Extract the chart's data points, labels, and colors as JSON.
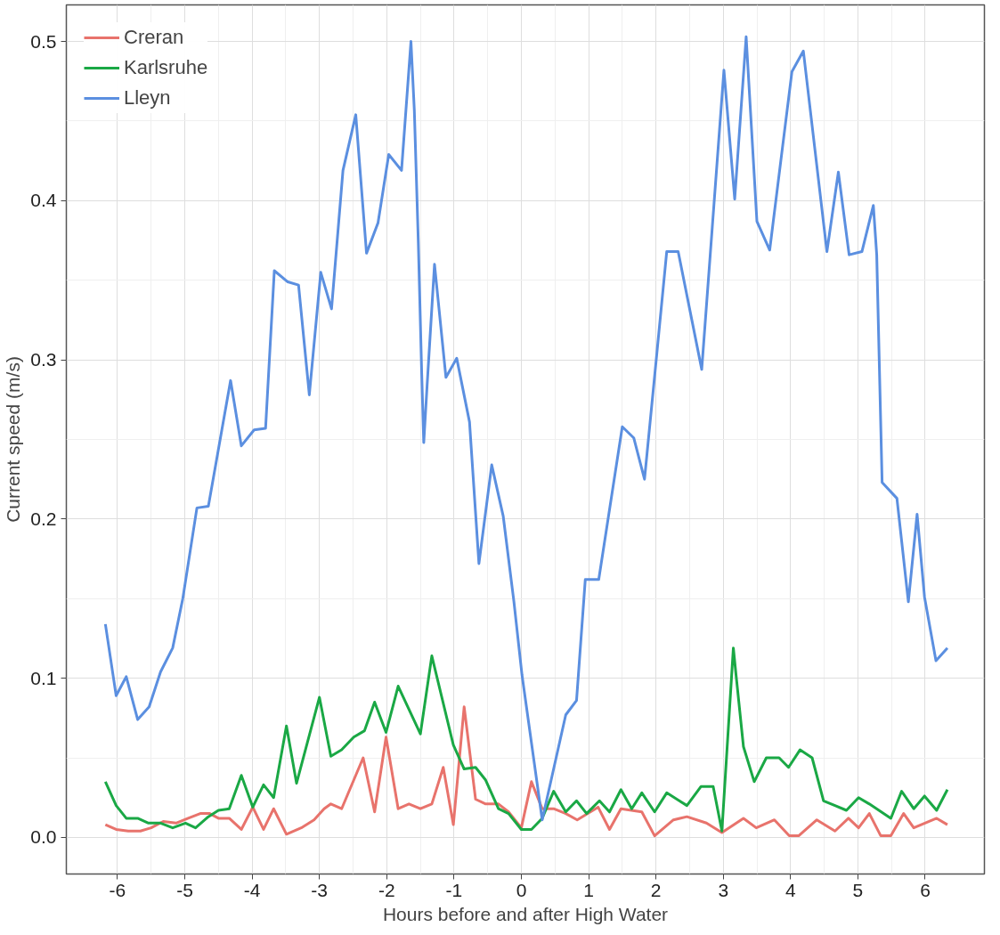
{
  "chart_data": {
    "type": "line",
    "xlabel": "Hours before and after High Water",
    "ylabel": "Current speed (m/s)",
    "xlim": [
      -6.76,
      6.88
    ],
    "ylim": [
      -0.023,
      0.523
    ],
    "xticks": [
      -6,
      -5,
      -4,
      -3,
      -2,
      -1,
      0,
      1,
      2,
      3,
      4,
      5,
      6
    ],
    "yticks": [
      {
        "value": 0,
        "label": "0.0"
      },
      {
        "value": 0.1,
        "label": "0.1"
      },
      {
        "value": 0.2,
        "label": "0.2"
      },
      {
        "value": 0.3,
        "label": "0.3"
      },
      {
        "value": 0.4,
        "label": "0.4"
      },
      {
        "value": 0.5,
        "label": "0.5"
      }
    ],
    "grid": true,
    "legend": "top left",
    "series": [
      {
        "name": "Creran",
        "color": "#e8736c",
        "x": [
          -6.18,
          -6.02,
          -5.84,
          -5.66,
          -5.5,
          -5.32,
          -5.13,
          -4.95,
          -4.77,
          -4.63,
          -4.5,
          -4.34,
          -4.16,
          -3.99,
          -3.83,
          -3.68,
          -3.49,
          -3.27,
          -3.08,
          -2.93,
          -2.83,
          -2.67,
          -2.35,
          -2.18,
          -2.01,
          -1.83,
          -1.67,
          -1.5,
          -1.33,
          -1.16,
          -1.01,
          -0.85,
          -0.68,
          -0.53,
          -0.34,
          -0.19,
          0.0,
          0.15,
          0.31,
          0.48,
          0.66,
          0.83,
          1.14,
          1.31,
          1.48,
          1.79,
          1.98,
          2.26,
          2.46,
          2.75,
          2.98,
          3.3,
          3.49,
          3.76,
          3.98,
          4.12,
          4.39,
          4.66,
          4.86,
          5.01,
          5.17,
          5.34,
          5.49,
          5.68,
          5.83,
          6.17,
          6.33
        ],
        "values": [
          0.008,
          0.005,
          0.004,
          0.004,
          0.006,
          0.01,
          0.009,
          0.012,
          0.015,
          0.015,
          0.012,
          0.012,
          0.005,
          0.019,
          0.005,
          0.018,
          0.002,
          0.006,
          0.011,
          0.018,
          0.021,
          0.018,
          0.05,
          0.016,
          0.063,
          0.018,
          0.021,
          0.018,
          0.021,
          0.044,
          0.008,
          0.082,
          0.024,
          0.021,
          0.021,
          0.016,
          0.006,
          0.035,
          0.018,
          0.018,
          0.015,
          0.011,
          0.019,
          0.005,
          0.018,
          0.016,
          0.001,
          0.011,
          0.013,
          0.009,
          0.003,
          0.012,
          0.006,
          0.011,
          0.001,
          0.001,
          0.011,
          0.004,
          0.012,
          0.006,
          0.015,
          0.001,
          0.001,
          0.015,
          0.006,
          0.012,
          0.008
        ]
      },
      {
        "name": "Karlsruhe",
        "color": "#1aa845",
        "x": [
          -6.18,
          -6.02,
          -5.87,
          -5.7,
          -5.54,
          -5.36,
          -5.18,
          -4.99,
          -4.84,
          -4.65,
          -4.5,
          -4.34,
          -4.16,
          -3.99,
          -3.83,
          -3.68,
          -3.49,
          -3.34,
          -3.0,
          -2.83,
          -2.67,
          -2.49,
          -2.33,
          -2.18,
          -2.01,
          -1.83,
          -1.5,
          -1.33,
          -1.01,
          -0.85,
          -0.68,
          -0.53,
          -0.34,
          -0.19,
          0.0,
          0.15,
          0.31,
          0.48,
          0.66,
          0.82,
          0.97,
          1.16,
          1.31,
          1.48,
          1.64,
          1.79,
          1.98,
          2.16,
          2.46,
          2.67,
          2.85,
          2.98,
          3.15,
          3.19,
          3.3,
          3.46,
          3.64,
          3.83,
          3.97,
          4.14,
          4.32,
          4.49,
          4.66,
          4.83,
          5.01,
          5.17,
          5.49,
          5.65,
          5.83,
          5.99,
          6.17,
          6.33
        ],
        "values": [
          0.035,
          0.02,
          0.012,
          0.012,
          0.009,
          0.009,
          0.006,
          0.009,
          0.006,
          0.013,
          0.017,
          0.018,
          0.039,
          0.019,
          0.033,
          0.025,
          0.07,
          0.034,
          0.088,
          0.051,
          0.055,
          0.063,
          0.067,
          0.085,
          0.066,
          0.095,
          0.065,
          0.114,
          0.058,
          0.043,
          0.044,
          0.036,
          0.018,
          0.015,
          0.005,
          0.005,
          0.012,
          0.029,
          0.016,
          0.023,
          0.015,
          0.023,
          0.016,
          0.03,
          0.018,
          0.028,
          0.016,
          0.028,
          0.02,
          0.032,
          0.032,
          0.004,
          0.119,
          0.102,
          0.057,
          0.035,
          0.05,
          0.05,
          0.044,
          0.055,
          0.05,
          0.023,
          0.02,
          0.017,
          0.025,
          0.021,
          0.012,
          0.029,
          0.018,
          0.026,
          0.017,
          0.03
        ]
      },
      {
        "name": "Lleyn",
        "color": "#5b8fe0",
        "x": [
          -6.18,
          -6.02,
          -5.87,
          -5.7,
          -5.53,
          -5.36,
          -5.18,
          -5.03,
          -4.82,
          -4.65,
          -4.32,
          -4.16,
          -3.97,
          -3.8,
          -3.67,
          -3.47,
          -3.31,
          -3.15,
          -2.98,
          -2.82,
          -2.65,
          -2.46,
          -2.3,
          -2.13,
          -1.97,
          -1.78,
          -1.64,
          -1.59,
          -1.53,
          -1.48,
          -1.45,
          -1.4,
          -1.29,
          -1.12,
          -0.96,
          -0.77,
          -0.63,
          -0.44,
          -0.27,
          -0.11,
          0.01,
          0.31,
          0.66,
          0.82,
          0.95,
          1.15,
          1.5,
          1.67,
          1.83,
          2.02,
          2.16,
          2.33,
          2.68,
          3.01,
          3.17,
          3.34,
          3.5,
          3.69,
          4.02,
          4.19,
          4.54,
          4.71,
          4.87,
          5.06,
          5.23,
          5.28,
          5.36,
          5.58,
          5.75,
          5.88,
          5.99,
          6.16,
          6.33
        ],
        "values": [
          0.134,
          0.089,
          0.101,
          0.074,
          0.082,
          0.104,
          0.119,
          0.15,
          0.207,
          0.208,
          0.287,
          0.246,
          0.256,
          0.257,
          0.356,
          0.349,
          0.347,
          0.278,
          0.355,
          0.332,
          0.419,
          0.454,
          0.367,
          0.386,
          0.429,
          0.419,
          0.5,
          0.457,
          0.373,
          0.291,
          0.248,
          0.284,
          0.36,
          0.289,
          0.301,
          0.261,
          0.172,
          0.234,
          0.202,
          0.148,
          0.102,
          0.011,
          0.077,
          0.086,
          0.162,
          0.162,
          0.258,
          0.251,
          0.225,
          0.307,
          0.368,
          0.368,
          0.294,
          0.482,
          0.401,
          0.503,
          0.387,
          0.369,
          0.481,
          0.494,
          0.368,
          0.418,
          0.366,
          0.368,
          0.397,
          0.366,
          0.223,
          0.213,
          0.148,
          0.203,
          0.151,
          0.111,
          0.119
        ]
      }
    ]
  }
}
